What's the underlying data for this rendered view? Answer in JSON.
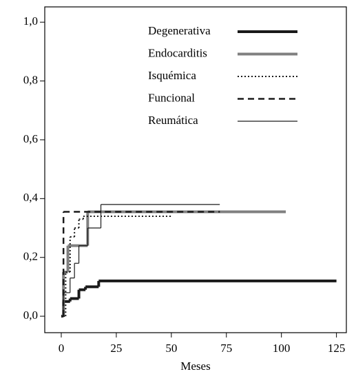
{
  "chart_data": {
    "type": "step",
    "x_label": "Meses",
    "xlim": [
      -7.5,
      129.5
    ],
    "ylim": [
      -0.056,
      1.052
    ],
    "xticks": [
      0,
      25,
      50,
      75,
      100,
      125
    ],
    "yticks": [
      {
        "value": 0,
        "label": "0,0"
      },
      {
        "value": 0.2,
        "label": "0,2"
      },
      {
        "value": 0.4,
        "label": "0,4"
      },
      {
        "value": 0.6,
        "label": "0,6"
      },
      {
        "value": 0.8,
        "label": "0,8"
      },
      {
        "value": 1.0,
        "label": "1,0"
      }
    ],
    "legend": "top-right",
    "series": [
      {
        "name": "Degenerativa",
        "color": "#1a1a1a",
        "width": 4,
        "dash": "none",
        "x": [
          0,
          1,
          4,
          8,
          11,
          17,
          125
        ],
        "values": [
          0,
          0.05,
          0.06,
          0.09,
          0.1,
          0.12,
          0.12
        ]
      },
      {
        "name": "Endocarditis",
        "color": "#808080",
        "width": 4,
        "dash": "none",
        "x": [
          0.5,
          1,
          3,
          12,
          102
        ],
        "values": [
          0,
          0.15,
          0.24,
          0.355,
          0.355
        ]
      },
      {
        "name": "Isquémica",
        "color": "#1a1a1a",
        "width": 2,
        "dash": "2 3",
        "x": [
          1,
          2,
          4,
          6,
          8,
          10,
          50
        ],
        "values": [
          0,
          0.15,
          0.27,
          0.3,
          0.33,
          0.34,
          0.34
        ]
      },
      {
        "name": "Funcional",
        "color": "#1a1a1a",
        "width": 2.5,
        "dash": "9 6",
        "x": [
          0,
          1,
          72
        ],
        "values": [
          0,
          0.355,
          0.355
        ]
      },
      {
        "name": "Reumática",
        "color": "#1a1a1a",
        "width": 1.2,
        "dash": "none",
        "x": [
          0,
          1,
          4,
          6,
          8,
          12,
          18,
          72
        ],
        "values": [
          0,
          0.08,
          0.13,
          0.18,
          0.24,
          0.3,
          0.38,
          0.38
        ]
      }
    ]
  }
}
